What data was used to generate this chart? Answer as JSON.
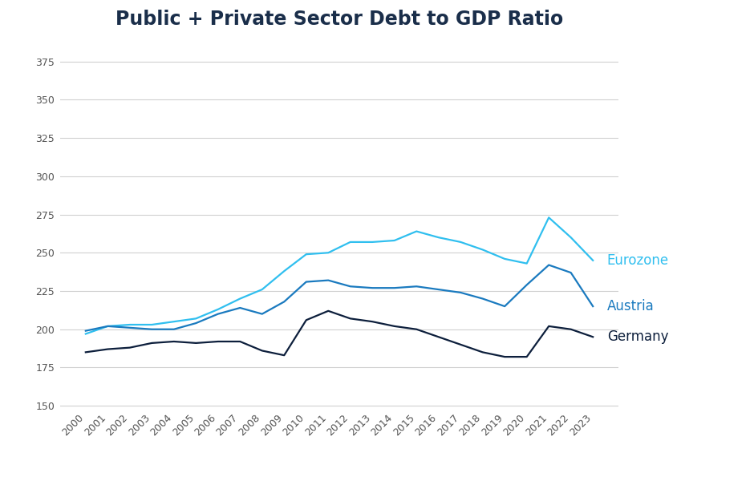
{
  "title": "Public + Private Sector Debt to GDP Ratio",
  "title_fontsize": 17,
  "title_fontweight": "bold",
  "title_color": "#1a2e4a",
  "background_color": "#ffffff",
  "grid_color": "#d0d0d0",
  "ylim": [
    148,
    390
  ],
  "yticks": [
    150,
    175,
    200,
    225,
    250,
    275,
    300,
    325,
    350,
    375
  ],
  "years": [
    2000,
    2001,
    2002,
    2003,
    2004,
    2005,
    2006,
    2007,
    2008,
    2009,
    2010,
    2011,
    2012,
    2013,
    2014,
    2015,
    2016,
    2017,
    2018,
    2019,
    2020,
    2021,
    2022,
    2023
  ],
  "eurozone": {
    "label": "Eurozone",
    "color": "#30bfef",
    "values": [
      197,
      202,
      203,
      203,
      205,
      207,
      213,
      220,
      226,
      238,
      249,
      250,
      257,
      257,
      258,
      264,
      260,
      257,
      252,
      246,
      243,
      273,
      260,
      245
    ]
  },
  "austria": {
    "label": "Austria",
    "color": "#1a7abf",
    "values": [
      199,
      202,
      201,
      200,
      200,
      204,
      210,
      214,
      210,
      218,
      231,
      232,
      228,
      227,
      227,
      228,
      226,
      224,
      220,
      215,
      229,
      242,
      237,
      215
    ]
  },
  "germany": {
    "label": "Germany",
    "color": "#0d1f3c",
    "values": [
      185,
      187,
      188,
      191,
      192,
      191,
      192,
      192,
      186,
      183,
      206,
      212,
      207,
      205,
      202,
      200,
      195,
      190,
      185,
      182,
      182,
      202,
      200,
      195
    ]
  },
  "legend_fontsize": 12,
  "tick_fontsize": 9,
  "tick_color": "#555555",
  "line_width": 1.6
}
